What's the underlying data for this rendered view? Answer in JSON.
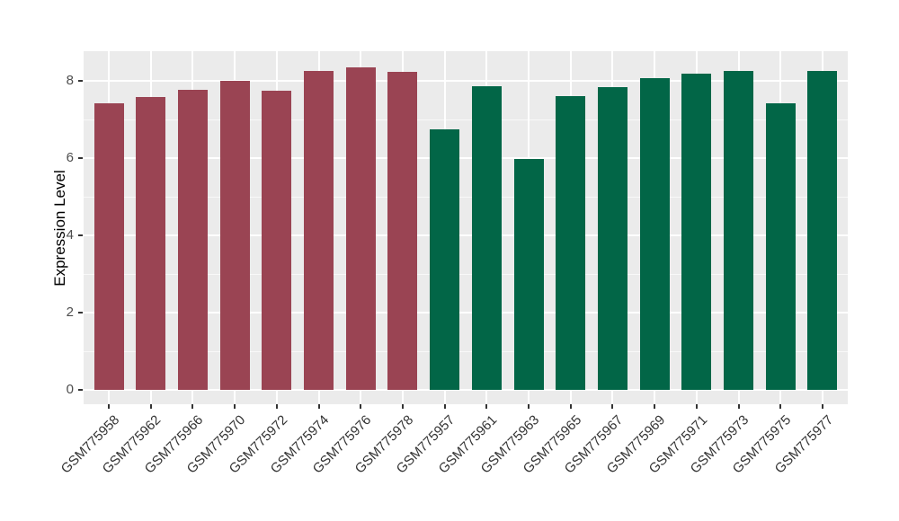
{
  "chart_data": {
    "type": "bar",
    "title": "",
    "xlabel": "",
    "ylabel": "Expression Level",
    "ylim": [
      0,
      8.8
    ],
    "yticks": [
      0,
      2,
      4,
      6,
      8
    ],
    "yticks_minor": [
      1,
      3,
      5,
      7
    ],
    "grid": "on",
    "legend": "none",
    "panel_bg": "#EBEBEB",
    "grid_color": "#FFFFFF",
    "axis_text_color": "#4D4D4D",
    "axis_title_color": "#000000",
    "group_colors": {
      "group1": "#9A4453",
      "group2": "#026647"
    },
    "categories": [
      "GSM775958",
      "GSM775962",
      "GSM775966",
      "GSM775970",
      "GSM775972",
      "GSM775974",
      "GSM775976",
      "GSM775978",
      "GSM775957",
      "GSM775961",
      "GSM775963",
      "GSM775965",
      "GSM775967",
      "GSM775969",
      "GSM775971",
      "GSM775973",
      "GSM775975",
      "GSM775977"
    ],
    "values": [
      7.41,
      7.58,
      7.76,
      7.99,
      7.74,
      8.26,
      8.36,
      8.24,
      6.74,
      7.87,
      5.98,
      7.61,
      7.84,
      8.08,
      8.18,
      8.26,
      7.43,
      8.26
    ],
    "bars": [
      {
        "label": "GSM775958",
        "value": 7.41,
        "group": "group1"
      },
      {
        "label": "GSM775962",
        "value": 7.58,
        "group": "group1"
      },
      {
        "label": "GSM775966",
        "value": 7.76,
        "group": "group1"
      },
      {
        "label": "GSM775970",
        "value": 7.99,
        "group": "group1"
      },
      {
        "label": "GSM775972",
        "value": 7.74,
        "group": "group1"
      },
      {
        "label": "GSM775974",
        "value": 8.26,
        "group": "group1"
      },
      {
        "label": "GSM775976",
        "value": 8.36,
        "group": "group1"
      },
      {
        "label": "GSM775978",
        "value": 8.24,
        "group": "group1"
      },
      {
        "label": "GSM775957",
        "value": 6.74,
        "group": "group2"
      },
      {
        "label": "GSM775961",
        "value": 7.87,
        "group": "group2"
      },
      {
        "label": "GSM775963",
        "value": 5.98,
        "group": "group2"
      },
      {
        "label": "GSM775965",
        "value": 7.61,
        "group": "group2"
      },
      {
        "label": "GSM775967",
        "value": 7.84,
        "group": "group2"
      },
      {
        "label": "GSM775969",
        "value": 8.08,
        "group": "group2"
      },
      {
        "label": "GSM775971",
        "value": 8.18,
        "group": "group2"
      },
      {
        "label": "GSM775973",
        "value": 8.26,
        "group": "group2"
      },
      {
        "label": "GSM775975",
        "value": 7.43,
        "group": "group2"
      },
      {
        "label": "GSM775977",
        "value": 8.26,
        "group": "group2"
      }
    ]
  }
}
